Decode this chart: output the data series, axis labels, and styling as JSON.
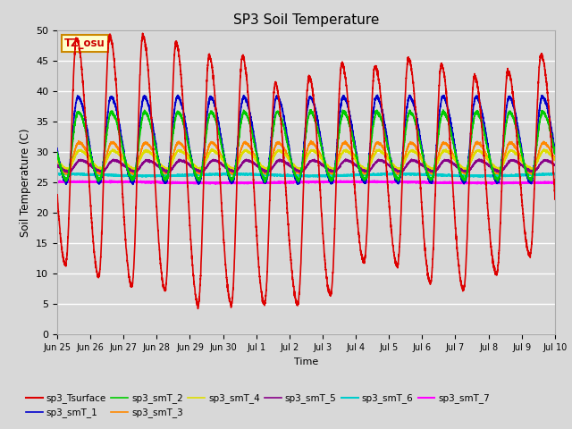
{
  "title": "SP3 Soil Temperature",
  "xlabel": "Time",
  "ylabel": "Soil Temperature (C)",
  "ylim": [
    0,
    50
  ],
  "yticks": [
    0,
    5,
    10,
    15,
    20,
    25,
    30,
    35,
    40,
    45,
    50
  ],
  "bg_color": "#d8d8d8",
  "tz_label": "TZ_osu",
  "series": {
    "sp3_Tsurface": {
      "color": "#dd0000",
      "lw": 1.2
    },
    "sp3_smT_1": {
      "color": "#0000cc",
      "lw": 1.2
    },
    "sp3_smT_2": {
      "color": "#00cc00",
      "lw": 1.2
    },
    "sp3_smT_3": {
      "color": "#ff8800",
      "lw": 1.2
    },
    "sp3_smT_4": {
      "color": "#dddd00",
      "lw": 1.2
    },
    "sp3_smT_5": {
      "color": "#880088",
      "lw": 1.2
    },
    "sp3_smT_6": {
      "color": "#00cccc",
      "lw": 1.5
    },
    "sp3_smT_7": {
      "color": "#ff00ff",
      "lw": 1.5
    }
  },
  "xtick_labels": [
    "Jun 25",
    "Jun 26",
    "Jun 27",
    "Jun 28",
    "Jun 29",
    "Jun 30",
    "Jul 1",
    "Jul 2",
    "Jul 3",
    "Jul 4",
    "Jul 5",
    "Jul 6",
    "Jul 7",
    "Jul 8",
    "Jul 9",
    "Jul 10"
  ],
  "n_points": 5000
}
